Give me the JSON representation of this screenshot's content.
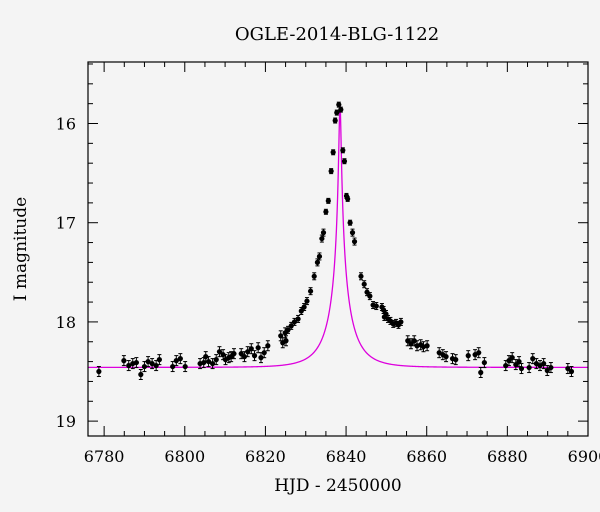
{
  "chart_data": {
    "type": "scatter",
    "title": "OGLE-2014-BLG-1122",
    "xlabel": "HJD - 2450000",
    "ylabel": "I magnitude",
    "xlim": [
      6776,
      6900
    ],
    "ylim": [
      19.15,
      15.38
    ],
    "y_inverted": true,
    "grid": false,
    "colors": {
      "data": "#000000",
      "model": "#dd00dd",
      "frame": "#000000",
      "background": "#f4f4f4"
    },
    "xticks": [
      {
        "value": 6780,
        "label": "6780"
      },
      {
        "value": 6800,
        "label": "6800"
      },
      {
        "value": 6820,
        "label": "6820"
      },
      {
        "value": 6840,
        "label": "6840"
      },
      {
        "value": 6860,
        "label": "6860"
      },
      {
        "value": 6880,
        "label": "6880"
      },
      {
        "value": 6900,
        "label": "6900"
      }
    ],
    "yticks": [
      {
        "value": 16,
        "label": "16"
      },
      {
        "value": 17,
        "label": "17"
      },
      {
        "value": 18,
        "label": "18"
      },
      {
        "value": 19,
        "label": "19"
      }
    ],
    "series": [
      {
        "kind": "points",
        "points": [
          [
            6778.7,
            18.5
          ],
          [
            6784.9,
            18.39
          ],
          [
            6786.1,
            18.44
          ],
          [
            6787.1,
            18.42
          ],
          [
            6788.0,
            18.41
          ],
          [
            6789.1,
            18.53
          ],
          [
            6790.0,
            18.45
          ],
          [
            6790.9,
            18.4
          ],
          [
            6791.9,
            18.42
          ],
          [
            6792.9,
            18.44
          ],
          [
            6793.7,
            18.38
          ],
          [
            6797.0,
            18.45
          ],
          [
            6797.9,
            18.39
          ],
          [
            6798.9,
            18.37
          ],
          [
            6800.1,
            18.45
          ],
          [
            6803.8,
            18.42
          ],
          [
            6804.7,
            18.41
          ],
          [
            6805.2,
            18.35
          ],
          [
            6805.9,
            18.4
          ],
          [
            6806.9,
            18.42
          ],
          [
            6807.8,
            18.38
          ],
          [
            6808.6,
            18.3
          ],
          [
            6809.5,
            18.33
          ],
          [
            6810.1,
            18.38
          ],
          [
            6810.9,
            18.36
          ],
          [
            6811.5,
            18.35
          ],
          [
            6812.2,
            18.32
          ],
          [
            6814.0,
            18.32
          ],
          [
            6814.8,
            18.35
          ],
          [
            6815.6,
            18.3
          ],
          [
            6816.5,
            18.27
          ],
          [
            6817.3,
            18.34
          ],
          [
            6818.2,
            18.26
          ],
          [
            6818.9,
            18.36
          ],
          [
            6819.7,
            18.31
          ],
          [
            6820.6,
            18.24
          ],
          [
            6823.8,
            18.14
          ],
          [
            6824.3,
            18.21
          ],
          [
            6824.9,
            18.11
          ],
          [
            6825.1,
            18.19
          ],
          [
            6825.6,
            18.08
          ],
          [
            6826.4,
            18.04
          ],
          [
            6827.2,
            18.0
          ],
          [
            6828.1,
            17.97
          ],
          [
            6828.9,
            17.89
          ],
          [
            6829.6,
            17.85
          ],
          [
            6830.3,
            17.79
          ],
          [
            6831.2,
            17.69
          ],
          [
            6832.1,
            17.54
          ],
          [
            6832.9,
            17.4
          ],
          [
            6833.4,
            17.34
          ],
          [
            6834.0,
            17.16
          ],
          [
            6834.4,
            17.1
          ],
          [
            6835.0,
            16.89
          ],
          [
            6835.6,
            16.78
          ],
          [
            6836.3,
            16.48
          ],
          [
            6836.8,
            16.29
          ],
          [
            6837.3,
            15.97
          ],
          [
            6837.7,
            15.89
          ],
          [
            6838.2,
            15.81
          ],
          [
            6838.7,
            15.86
          ],
          [
            6839.2,
            16.27
          ],
          [
            6839.6,
            16.38
          ],
          [
            6840.1,
            16.73
          ],
          [
            6840.4,
            16.76
          ],
          [
            6841.0,
            17.0
          ],
          [
            6841.6,
            17.1
          ],
          [
            6842.1,
            17.19
          ],
          [
            6843.7,
            17.54
          ],
          [
            6844.5,
            17.62
          ],
          [
            6845.2,
            17.7
          ],
          [
            6845.9,
            17.74
          ],
          [
            6846.7,
            17.83
          ],
          [
            6847.5,
            17.84
          ],
          [
            6848.9,
            17.85
          ],
          [
            6849.3,
            17.88
          ],
          [
            6849.5,
            17.95
          ],
          [
            6849.9,
            17.92
          ],
          [
            6850.4,
            17.97
          ],
          [
            6851.0,
            17.99
          ],
          [
            6851.7,
            18.02
          ],
          [
            6852.4,
            18.01
          ],
          [
            6853.0,
            18.03
          ],
          [
            6853.6,
            18.0
          ],
          [
            6855.3,
            18.19
          ],
          [
            6856.1,
            18.22
          ],
          [
            6856.9,
            18.19
          ],
          [
            6857.6,
            18.24
          ],
          [
            6858.5,
            18.23
          ],
          [
            6859.2,
            18.25
          ],
          [
            6860.1,
            18.24
          ],
          [
            6863.1,
            18.31
          ],
          [
            6864.0,
            18.33
          ],
          [
            6864.8,
            18.35
          ],
          [
            6866.4,
            18.37
          ],
          [
            6867.2,
            18.38
          ],
          [
            6870.3,
            18.34
          ],
          [
            6872.0,
            18.33
          ],
          [
            6872.9,
            18.31
          ],
          [
            6873.4,
            18.51
          ],
          [
            6874.3,
            18.41
          ],
          [
            6879.6,
            18.44
          ],
          [
            6880.4,
            18.39
          ],
          [
            6881.2,
            18.36
          ],
          [
            6882.1,
            18.43
          ],
          [
            6882.9,
            18.4
          ],
          [
            6883.5,
            18.47
          ],
          [
            6885.4,
            18.46
          ],
          [
            6886.3,
            18.37
          ],
          [
            6887.2,
            18.42
          ],
          [
            6888.1,
            18.44
          ],
          [
            6889.0,
            18.42
          ],
          [
            6889.9,
            18.49
          ],
          [
            6890.8,
            18.46
          ],
          [
            6895.0,
            18.47
          ],
          [
            6895.9,
            18.5
          ]
        ]
      },
      {
        "kind": "model",
        "t0": 6838.5,
        "tE": 6.6,
        "u0": 0.0385,
        "source_mag": 19.4,
        "blend_fraction": 0.42
      }
    ]
  }
}
